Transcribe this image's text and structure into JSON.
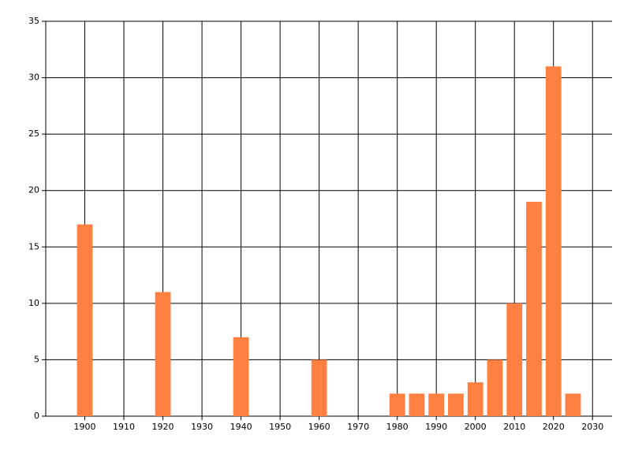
{
  "chart_data": {
    "type": "bar",
    "x": [
      1900,
      1920,
      1940,
      1960,
      1980,
      1985,
      1990,
      1995,
      2000,
      2005,
      2010,
      2015,
      2020,
      2025
    ],
    "values": [
      17,
      11,
      7,
      5,
      2,
      2,
      2,
      2,
      3,
      5,
      10,
      19,
      31,
      2
    ],
    "color": "#ff8040",
    "xlim": [
      1890,
      2035
    ],
    "xticks": [
      1900,
      1910,
      1920,
      1930,
      1940,
      1950,
      1960,
      1970,
      1980,
      1990,
      2000,
      2010,
      2020,
      2030
    ],
    "ylim": [
      0,
      35
    ],
    "yticks": [
      0,
      5,
      10,
      15,
      20,
      25,
      30,
      35
    ],
    "grid": true
  }
}
